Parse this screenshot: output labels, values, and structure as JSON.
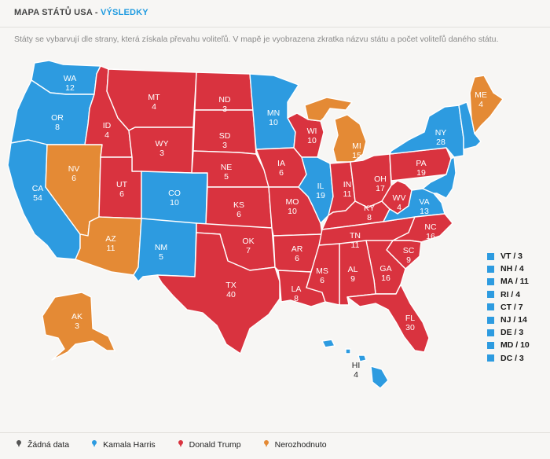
{
  "header": {
    "title": "MAPA STÁTŮ USA",
    "separator": " - ",
    "subtitle": "VÝSLEDKY"
  },
  "description": "Státy se vybarvují dle strany, která získala převahu voliteľů. V mapě je vyobrazena zkratka názvu státu a počet voliteľů daného státu.",
  "colors": {
    "harris": "#2d9be0",
    "trump": "#d9333f",
    "undecided": "#e48a35",
    "nodata": "#555555"
  },
  "states": [
    {
      "abbr": "WA",
      "votes": "12",
      "party": "harris"
    },
    {
      "abbr": "OR",
      "votes": "8",
      "party": "harris"
    },
    {
      "abbr": "CA",
      "votes": "54",
      "party": "harris"
    },
    {
      "abbr": "NV",
      "votes": "6",
      "party": "undecided"
    },
    {
      "abbr": "ID",
      "votes": "4",
      "party": "trump"
    },
    {
      "abbr": "MT",
      "votes": "4",
      "party": "trump"
    },
    {
      "abbr": "WY",
      "votes": "3",
      "party": "trump"
    },
    {
      "abbr": "UT",
      "votes": "6",
      "party": "trump"
    },
    {
      "abbr": "AZ",
      "votes": "11",
      "party": "undecided"
    },
    {
      "abbr": "CO",
      "votes": "10",
      "party": "harris"
    },
    {
      "abbr": "NM",
      "votes": "5",
      "party": "harris"
    },
    {
      "abbr": "ND",
      "votes": "3",
      "party": "trump"
    },
    {
      "abbr": "SD",
      "votes": "3",
      "party": "trump"
    },
    {
      "abbr": "NE",
      "votes": "5",
      "party": "trump"
    },
    {
      "abbr": "KS",
      "votes": "6",
      "party": "trump"
    },
    {
      "abbr": "OK",
      "votes": "7",
      "party": "trump"
    },
    {
      "abbr": "TX",
      "votes": "40",
      "party": "trump"
    },
    {
      "abbr": "MN",
      "votes": "10",
      "party": "harris"
    },
    {
      "abbr": "IA",
      "votes": "6",
      "party": "trump"
    },
    {
      "abbr": "MO",
      "votes": "10",
      "party": "trump"
    },
    {
      "abbr": "AR",
      "votes": "6",
      "party": "trump"
    },
    {
      "abbr": "LA",
      "votes": "8",
      "party": "trump"
    },
    {
      "abbr": "WI",
      "votes": "10",
      "party": "trump"
    },
    {
      "abbr": "IL",
      "votes": "19",
      "party": "harris"
    },
    {
      "abbr": "MI",
      "votes": "15",
      "party": "undecided"
    },
    {
      "abbr": "IN",
      "votes": "11",
      "party": "trump"
    },
    {
      "abbr": "OH",
      "votes": "17",
      "party": "trump"
    },
    {
      "abbr": "KY",
      "votes": "8",
      "party": "trump"
    },
    {
      "abbr": "TN",
      "votes": "11",
      "party": "trump"
    },
    {
      "abbr": "MS",
      "votes": "6",
      "party": "trump"
    },
    {
      "abbr": "AL",
      "votes": "9",
      "party": "trump"
    },
    {
      "abbr": "GA",
      "votes": "16",
      "party": "trump"
    },
    {
      "abbr": "FL",
      "votes": "30",
      "party": "trump"
    },
    {
      "abbr": "SC",
      "votes": "9",
      "party": "trump"
    },
    {
      "abbr": "NC",
      "votes": "16",
      "party": "trump"
    },
    {
      "abbr": "VA",
      "votes": "13",
      "party": "harris"
    },
    {
      "abbr": "WV",
      "votes": "4",
      "party": "trump"
    },
    {
      "abbr": "PA",
      "votes": "19",
      "party": "trump"
    },
    {
      "abbr": "NY",
      "votes": "28",
      "party": "harris"
    },
    {
      "abbr": "ME",
      "votes": "4",
      "party": "undecided"
    },
    {
      "abbr": "AK",
      "votes": "3",
      "party": "undecided"
    },
    {
      "abbr": "HI",
      "votes": "4",
      "party": "harris"
    }
  ],
  "small_states": [
    {
      "label": "VT / 3"
    },
    {
      "label": "NH / 4"
    },
    {
      "label": "MA / 11"
    },
    {
      "label": "RI / 4"
    },
    {
      "label": "CT / 7"
    },
    {
      "label": "NJ / 14"
    },
    {
      "label": "DE / 3"
    },
    {
      "label": "MD / 10"
    },
    {
      "label": "DC / 3"
    }
  ],
  "legend": [
    {
      "label": "Žádná data",
      "color": "#555555"
    },
    {
      "label": "Kamala Harris",
      "color": "#2d9be0"
    },
    {
      "label": "Donald Trump",
      "color": "#d9333f"
    },
    {
      "label": "Nerozhodnuto",
      "color": "#e48a35"
    }
  ]
}
